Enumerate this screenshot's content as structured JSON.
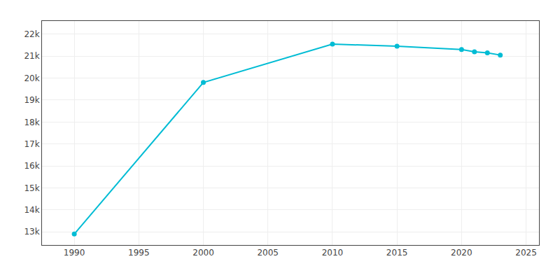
{
  "chart_data": {
    "type": "line",
    "x": [
      1990,
      2000,
      2010,
      2015,
      2020,
      2021,
      2022,
      2023
    ],
    "values": [
      12900,
      19800,
      21550,
      21450,
      21300,
      21200,
      21150,
      21050
    ],
    "color": "#00BCD4",
    "marker": "circle",
    "line_style": "solid",
    "xlim": [
      1987.5,
      2026
    ],
    "xticks": [
      1990,
      1995,
      2000,
      2005,
      2010,
      2015,
      2020,
      2025
    ],
    "ylim": [
      12400,
      22600
    ],
    "yticks": [
      {
        "value": 13000,
        "label": "13k"
      },
      {
        "value": 14000,
        "label": "14k"
      },
      {
        "value": 15000,
        "label": "15k"
      },
      {
        "value": 16000,
        "label": "16k"
      },
      {
        "value": 17000,
        "label": "17k"
      },
      {
        "value": 18000,
        "label": "18k"
      },
      {
        "value": 19000,
        "label": "19k"
      },
      {
        "value": 20000,
        "label": "20k"
      },
      {
        "value": 21000,
        "label": "21k"
      },
      {
        "value": 22000,
        "label": "22k"
      }
    ],
    "grid": true
  }
}
